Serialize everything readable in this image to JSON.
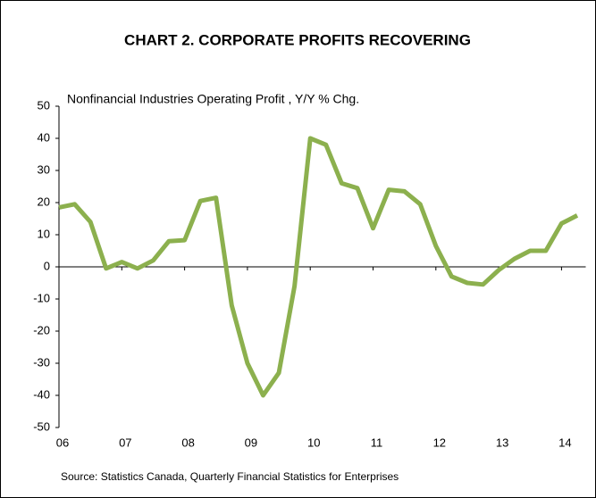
{
  "chart_data": {
    "type": "line",
    "title": "CHART 2. CORPORATE PROFITS RECOVERING",
    "subtitle": "Nonfinancial Industries Operating Profit , Y/Y % Chg.",
    "source": "Source: Statistics Canada, Quarterly Financial Statistics for Enterprises",
    "x": [
      6,
      6.25,
      6.5,
      6.75,
      7,
      7.25,
      7.5,
      7.75,
      8,
      8.25,
      8.5,
      8.75,
      9,
      9.25,
      9.5,
      9.75,
      10,
      10.25,
      10.5,
      10.75,
      11,
      11.25,
      11.5,
      11.75,
      12,
      12.25,
      12.5,
      12.75,
      13,
      13.25,
      13.5,
      13.75,
      14,
      14.25
    ],
    "series": [
      {
        "name": "Nonfinancial Industries Operating Profit",
        "color": "#8cb04e",
        "values": [
          18.5,
          19.5,
          14,
          -0.5,
          1.5,
          -0.5,
          2,
          8,
          8.3,
          20.5,
          21.5,
          -12,
          -30,
          -40,
          -33,
          -6,
          40,
          38,
          26,
          24.5,
          12,
          24,
          23.5,
          19.5,
          6.5,
          -3,
          -5,
          -5.5,
          -1,
          2.5,
          5,
          5,
          13.5,
          16
        ]
      }
    ],
    "xlim": [
      6,
      14.3
    ],
    "xticks": [
      {
        "value": 6,
        "label": "06"
      },
      {
        "value": 7,
        "label": "07"
      },
      {
        "value": 8,
        "label": "08"
      },
      {
        "value": 9,
        "label": "09"
      },
      {
        "value": 10,
        "label": "10"
      },
      {
        "value": 11,
        "label": "11"
      },
      {
        "value": 12,
        "label": "12"
      },
      {
        "value": 13,
        "label": "13"
      },
      {
        "value": 14,
        "label": "14"
      }
    ],
    "ylim": [
      -50,
      50
    ],
    "yticks": [
      -50,
      -40,
      -30,
      -20,
      -10,
      0,
      10,
      20,
      30,
      40,
      50
    ]
  }
}
